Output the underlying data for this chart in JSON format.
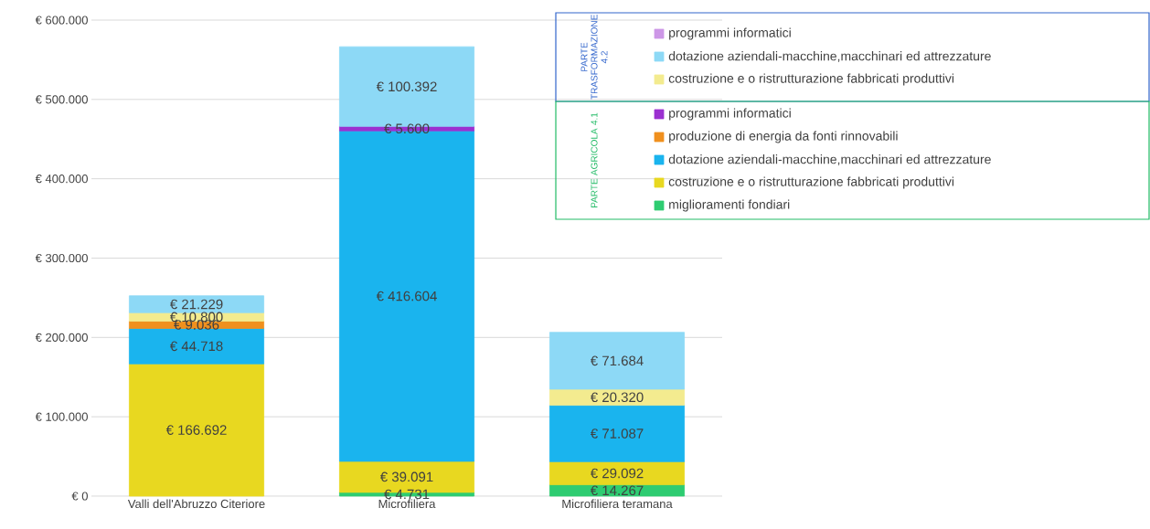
{
  "chart_data": {
    "type": "bar",
    "stacked": true,
    "categories": [
      "Valli dell'Abruzzo Citeriore",
      "Microfiliera",
      "Microfiliera teramana"
    ],
    "series": [
      {
        "name": "miglioramenti fondiari",
        "color": "#2ecc71",
        "values": [
          null,
          4.731,
          14.267
        ],
        "value_labels": [
          null,
          "€ 4.731",
          "€ 14.267"
        ]
      },
      {
        "name": "costruzione e o ristrutturazione fabbricati produttivi",
        "color": "#e8d820",
        "values": [
          166.692,
          39.091,
          29.092
        ],
        "value_labels": [
          "€ 166.692",
          "€ 39.091",
          "€ 29.092"
        ]
      },
      {
        "name": "dotazione aziendali-macchine,macchinari ed attrezzature",
        "color": "#1ab4ee",
        "values": [
          44.718,
          416.604,
          71.087
        ],
        "value_labels": [
          "€ 44.718",
          "€ 416.604",
          "€ 71.087"
        ]
      },
      {
        "name": "produzione di energia da fonti rinnovabili",
        "color": "#f0901e",
        "values": [
          9.036,
          null,
          null
        ],
        "value_labels": [
          "€ 9.036",
          null,
          null
        ]
      },
      {
        "name": "programmi informatici",
        "color": "#9b30d0",
        "values": [
          null,
          5.6,
          null
        ],
        "value_labels": [
          null,
          "€ 5.600",
          null
        ]
      },
      {
        "name": "costruzione e o ristrutturazione fabbricati produttivi",
        "color": "#f3eb8f",
        "values": [
          10.8,
          null,
          20.32
        ],
        "value_labels": [
          "€ 10.800",
          null,
          "€ 20.320"
        ]
      },
      {
        "name": "dotazione aziendali-macchine,macchinari ed attrezzature",
        "color": "#8dd9f6",
        "values": [
          21.229,
          100.392,
          71.684
        ],
        "value_labels": [
          "€ 21.229",
          "€ 100.392",
          "€ 71.684"
        ]
      },
      {
        "name": "programmi informatici",
        "color": "#cd97e7",
        "values": [
          null,
          null,
          null
        ],
        "value_labels": [
          null,
          null,
          null
        ]
      }
    ],
    "ylim": [
      0,
      600
    ],
    "yticks": [
      {
        "value": 0,
        "label": "€ 0"
      },
      {
        "value": 100,
        "label": "€ 100.000"
      },
      {
        "value": 200,
        "label": "€ 200.000"
      },
      {
        "value": 300,
        "label": "€ 300.000"
      },
      {
        "value": 400,
        "label": "€ 400.000"
      },
      {
        "value": 500,
        "label": "€ 500.000"
      },
      {
        "value": 600,
        "label": "€ 600.000"
      }
    ],
    "grid": "y",
    "legend": "top right",
    "annotations": [
      "PARTE TRASFORMAZIONE 4.2",
      "PARTE AGRICOLA 4.1"
    ]
  }
}
